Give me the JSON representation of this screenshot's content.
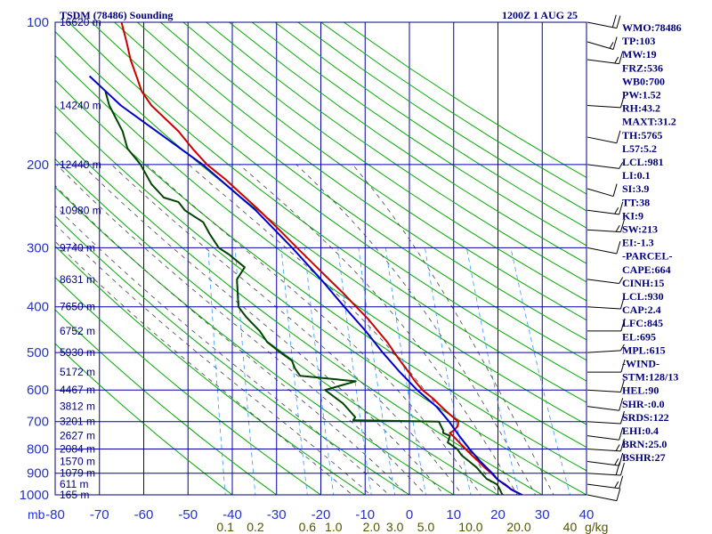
{
  "header": {
    "title": "TSDM (78486) Sounding",
    "valid_time": "1200Z  1 AUG 25"
  },
  "colors": {
    "frame": "#00007a",
    "isotherm": "#0000aa",
    "isobar": "#0000aa",
    "dry_adiabat": "#00aa00",
    "moist_adiabat": "#444444",
    "mixing_ratio": "#3399ff",
    "temperature": "#cc0000",
    "dewpoint": "#004400",
    "parcel": "#0000cc",
    "text": "#00007a",
    "axis_label": "#2233cc",
    "mixing_label": "#555500",
    "wind": "#000000"
  },
  "chart_data": {
    "type": "line",
    "title": "TSDM (78486) Sounding",
    "subtitle": "1200Z  1 AUG 25",
    "x_unit_label": "mb",
    "x_ticks": [
      -80,
      -70,
      -60,
      -50,
      -40,
      -30,
      -20,
      -10,
      0,
      10,
      20,
      30,
      40
    ],
    "x_tick_labels": [
      "-80",
      "-70",
      "-60",
      "-50",
      "-40",
      "-30",
      "-20",
      "-10",
      "0",
      "10",
      "20",
      "30",
      "40"
    ],
    "xlim": [
      -80,
      40
    ],
    "y_scale": "log",
    "ylim": [
      1000,
      100
    ],
    "pressure_ticks": [
      100,
      200,
      300,
      400,
      500,
      600,
      700,
      800,
      900,
      1000
    ],
    "pressure_tick_labels": [
      "100",
      "200",
      "300",
      "400",
      "500",
      "600",
      "700",
      "800",
      "900",
      "1000"
    ],
    "height_labels": [
      {
        "p": 100,
        "label": "16620 m"
      },
      {
        "p": 150,
        "label": "14240 m"
      },
      {
        "p": 200,
        "label": "12440 m"
      },
      {
        "p": 250,
        "label": "10980 m"
      },
      {
        "p": 300,
        "label": "9740 m"
      },
      {
        "p": 350,
        "label": "8631 m"
      },
      {
        "p": 400,
        "label": "7650 m"
      },
      {
        "p": 450,
        "label": "6752 m"
      },
      {
        "p": 500,
        "label": "5930 m"
      },
      {
        "p": 550,
        "label": "5172 m"
      },
      {
        "p": 600,
        "label": "4467 m"
      },
      {
        "p": 650,
        "label": "3812 m"
      },
      {
        "p": 700,
        "label": "3201 m"
      },
      {
        "p": 750,
        "label": "2627 m"
      },
      {
        "p": 800,
        "label": "2084 m"
      },
      {
        "p": 850,
        "label": "1570 m"
      },
      {
        "p": 900,
        "label": "1079 m"
      },
      {
        "p": 950,
        "label": "611 m"
      },
      {
        "p": 1000,
        "label": "165 m"
      }
    ],
    "mixing_ratio_labels": [
      "0.1",
      "0.2",
      "0.6",
      "1.0",
      "2.0",
      "3.0",
      "5.0",
      "10.0",
      "20.0",
      "40",
      "g/kg"
    ],
    "series": [
      {
        "name": "Temperature",
        "color": "#cc0000",
        "points": [
          {
            "p": 1005,
            "t": 26.4
          },
          {
            "p": 1000,
            "t": 25.4
          },
          {
            "p": 975,
            "t": 23.0
          },
          {
            "p": 950,
            "t": 21.1
          },
          {
            "p": 925,
            "t": 19.3
          },
          {
            "p": 900,
            "t": 17.9
          },
          {
            "p": 875,
            "t": 16.2
          },
          {
            "p": 850,
            "t": 14.7
          },
          {
            "p": 825,
            "t": 13.0
          },
          {
            "p": 800,
            "t": 11.4
          },
          {
            "p": 775,
            "t": 9.8
          },
          {
            "p": 750,
            "t": 8.2
          },
          {
            "p": 740,
            "t": 7.4
          },
          {
            "p": 730,
            "t": 8.3
          },
          {
            "p": 715,
            "t": 9.0
          },
          {
            "p": 700,
            "t": 9.0
          },
          {
            "p": 675,
            "t": 6.8
          },
          {
            "p": 650,
            "t": 4.7
          },
          {
            "p": 625,
            "t": 2.6
          },
          {
            "p": 600,
            "t": 0.0
          },
          {
            "p": 575,
            "t": -1.9
          },
          {
            "p": 550,
            "t": -3.6
          },
          {
            "p": 525,
            "t": -5.5
          },
          {
            "p": 500,
            "t": -7.4
          },
          {
            "p": 475,
            "t": -9.3
          },
          {
            "p": 450,
            "t": -11.7
          },
          {
            "p": 425,
            "t": -14.2
          },
          {
            "p": 400,
            "t": -17.3
          },
          {
            "p": 375,
            "t": -20.5
          },
          {
            "p": 350,
            "t": -24.2
          },
          {
            "p": 325,
            "t": -28.1
          },
          {
            "p": 300,
            "t": -32.3
          },
          {
            "p": 275,
            "t": -36.8
          },
          {
            "p": 250,
            "t": -41.9
          },
          {
            "p": 230,
            "t": -46.6
          },
          {
            "p": 215,
            "t": -50.4
          },
          {
            "p": 200,
            "t": -55.0
          },
          {
            "p": 185,
            "t": -58.7
          },
          {
            "p": 170,
            "t": -62.4
          },
          {
            "p": 165,
            "t": -64.0
          },
          {
            "p": 150,
            "t": -69.2
          },
          {
            "p": 140,
            "t": -71.8
          },
          {
            "p": 130,
            "t": -73.4
          },
          {
            "p": 120,
            "t": -75.2
          },
          {
            "p": 110,
            "t": -76.6
          },
          {
            "p": 100,
            "t": -78.3
          }
        ]
      },
      {
        "name": "Dewpoint",
        "color": "#004400",
        "points": [
          {
            "p": 1005,
            "t": 22.0
          },
          {
            "p": 1000,
            "t": 21.0
          },
          {
            "p": 975,
            "t": 20.3
          },
          {
            "p": 950,
            "t": 19.5
          },
          {
            "p": 925,
            "t": 17.0
          },
          {
            "p": 900,
            "t": 15.7
          },
          {
            "p": 875,
            "t": 14.4
          },
          {
            "p": 850,
            "t": 12.6
          },
          {
            "p": 825,
            "t": 10.7
          },
          {
            "p": 800,
            "t": 9.5
          },
          {
            "p": 775,
            "t": 7.2
          },
          {
            "p": 750,
            "t": 7.5
          },
          {
            "p": 740,
            "t": 5.9
          },
          {
            "p": 730,
            "t": 5.8
          },
          {
            "p": 710,
            "t": 5.0
          },
          {
            "p": 700,
            "t": 4.6
          },
          {
            "p": 695,
            "t": -14.8
          },
          {
            "p": 685,
            "t": -14.4
          },
          {
            "p": 665,
            "t": -15.8
          },
          {
            "p": 640,
            "t": -17.6
          },
          {
            "p": 600,
            "t": -22.0
          },
          {
            "p": 575,
            "t": -15.3
          },
          {
            "p": 560,
            "t": -28.0
          },
          {
            "p": 540,
            "t": -29.4
          },
          {
            "p": 520,
            "t": -30.3
          },
          {
            "p": 500,
            "t": -33.1
          },
          {
            "p": 475,
            "t": -36.4
          },
          {
            "p": 450,
            "t": -38.4
          },
          {
            "p": 420,
            "t": -41.9
          },
          {
            "p": 400,
            "t": -43.9
          },
          {
            "p": 350,
            "t": -45.0
          },
          {
            "p": 330,
            "t": -43.6
          },
          {
            "p": 310,
            "t": -47.5
          },
          {
            "p": 300,
            "t": -50.0
          },
          {
            "p": 280,
            "t": -52.5
          },
          {
            "p": 265,
            "t": -54.2
          },
          {
            "p": 250,
            "t": -58.7
          },
          {
            "p": 240,
            "t": -60.4
          },
          {
            "p": 235,
            "t": -63.8
          },
          {
            "p": 220,
            "t": -67.0
          },
          {
            "p": 200,
            "t": -70.0
          },
          {
            "p": 185,
            "t": -73.4
          },
          {
            "p": 170,
            "t": -75.0
          },
          {
            "p": 150,
            "t": -78.7
          },
          {
            "p": 140,
            "t": -80.0
          }
        ]
      },
      {
        "name": "Parcel",
        "color": "#0000cc",
        "points": [
          {
            "p": 1000,
            "t": 25.4
          },
          {
            "p": 975,
            "t": 22.9
          },
          {
            "p": 950,
            "t": 21.3
          },
          {
            "p": 930,
            "t": 19.6
          },
          {
            "p": 900,
            "t": 18.1
          },
          {
            "p": 850,
            "t": 15.1
          },
          {
            "p": 800,
            "t": 12.3
          },
          {
            "p": 750,
            "t": 9.6
          },
          {
            "p": 700,
            "t": 6.9
          },
          {
            "p": 650,
            "t": 3.6
          },
          {
            "p": 600,
            "t": -1.2
          },
          {
            "p": 550,
            "t": -5.6
          },
          {
            "p": 500,
            "t": -10.0
          },
          {
            "p": 450,
            "t": -14.5
          },
          {
            "p": 400,
            "t": -20.0
          },
          {
            "p": 350,
            "t": -26.0
          },
          {
            "p": 300,
            "t": -33.4
          },
          {
            "p": 250,
            "t": -42.7
          },
          {
            "p": 200,
            "t": -56.0
          },
          {
            "p": 150,
            "t": -76.1
          },
          {
            "p": 130,
            "t": -84.0
          }
        ]
      }
    ],
    "wind_barbs": [
      {
        "p": 100,
        "dir": 120,
        "kt": 20
      },
      {
        "p": 110,
        "dir": 130,
        "kt": 15
      },
      {
        "p": 120,
        "dir": 110,
        "kt": 15
      },
      {
        "p": 150,
        "dir": 100,
        "kt": 10
      },
      {
        "p": 175,
        "dir": 120,
        "kt": 10
      },
      {
        "p": 200,
        "dir": 110,
        "kt": 5
      },
      {
        "p": 225,
        "dir": 130,
        "kt": 10
      },
      {
        "p": 250,
        "dir": 110,
        "kt": 15
      },
      {
        "p": 275,
        "dir": 100,
        "kt": 15
      },
      {
        "p": 300,
        "dir": 120,
        "kt": 10
      },
      {
        "p": 350,
        "dir": 110,
        "kt": 5
      },
      {
        "p": 400,
        "dir": 100,
        "kt": 10
      },
      {
        "p": 450,
        "dir": 90,
        "kt": 10
      },
      {
        "p": 500,
        "dir": 80,
        "kt": 5
      },
      {
        "p": 550,
        "dir": 90,
        "kt": 10
      },
      {
        "p": 600,
        "dir": 100,
        "kt": 10
      },
      {
        "p": 650,
        "dir": 110,
        "kt": 10
      },
      {
        "p": 700,
        "dir": 100,
        "kt": 10
      },
      {
        "p": 750,
        "dir": 110,
        "kt": 10
      },
      {
        "p": 800,
        "dir": 100,
        "kt": 15
      },
      {
        "p": 850,
        "dir": 110,
        "kt": 15
      },
      {
        "p": 900,
        "dir": 100,
        "kt": 20
      },
      {
        "p": 950,
        "dir": 110,
        "kt": 15
      },
      {
        "p": 1000,
        "dir": 120,
        "kt": 10
      }
    ]
  },
  "indices": [
    "WMO:78486",
    "TP:103",
    "MW:19",
    "FRZ:536",
    "WB0:700",
    "PW:1.52",
    "RH:43.2",
    "MAXT:31.2",
    "TH:5765",
    "L57:5.2",
    "LCL:981",
    "LI:0.1",
    "SI:3.9",
    "TT:38",
    "KI:9",
    "SW:213",
    "EI:-1.3",
    "-PARCEL-",
    "CAPE:664",
    "CINH:15",
    "LCL:930",
    "CAP:2.4",
    "LFC:845",
    "EL:695",
    "MPL:615",
    "-WIND-",
    "STM:128/13",
    "HEL:90",
    "SHR-:0.0",
    "SRDS:122",
    "EHI:0.4",
    "BRN:25.0",
    "BSHR:27"
  ]
}
